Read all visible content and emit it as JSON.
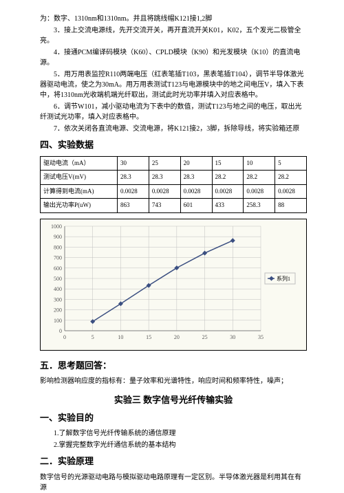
{
  "intro_lines": [
    "为：数字、1310nm和1310nm。并且将跳线帽K121接1,2脚",
    "3．接上交流电源线，先开交流开关，再开直流开关K01，K02，五个发光二极管全亮。",
    "4．接通PCM编译码模块（K60）、CPLD模块（K90）和光发模块（K10）的直流电源。",
    "5．用万用表监控R110两端电压（红表笔插T103，黑表笔插T104），调节半导体激光器驱动电流，使之为30mA。用万用表测试T123与电源模块中的地之间电压V，填入下表中，将1310nm光收端机端光纤取出，测试此时光功率并填入对应表格中。",
    "6．调节W101，减小驱动电流为下表中的数值，测试T123与地之间的电压，取出光纤测试光功率，填入对应表格中。",
    "7．依次关闭各直流电源、交流电源，将K121接2，3脚，拆除导线，将实验箱还原"
  ],
  "section4_title": "四、实验数据",
  "table": {
    "rows": [
      [
        "驱动电流（mA）",
        "30",
        "25",
        "20",
        "15",
        "10",
        "5"
      ],
      [
        "测试电压V(mV)",
        "28.3",
        "28.3",
        "28.3",
        "28.2",
        "28.2",
        "28.2"
      ],
      [
        "计算得到电流(mA)",
        "0.0028",
        "0.0028",
        "0.0028",
        "0.0028",
        "0.0028",
        "0.0028"
      ],
      [
        "输出光功率P(uW)",
        "863",
        "743",
        "601",
        "433",
        "258.3",
        "88"
      ]
    ]
  },
  "chart": {
    "type": "line",
    "x_values": [
      5,
      10,
      15,
      20,
      25,
      30
    ],
    "y_values": [
      88,
      258.3,
      433,
      601,
      743,
      863
    ],
    "x_min": 0,
    "x_max": 35,
    "x_step": 5,
    "y_min": 0,
    "y_max": 1000,
    "y_step": 100,
    "plot_bg": "#fafaf2",
    "grid_color": "#bfbfbf",
    "line_color": "#3b4f81",
    "marker_color": "#3b4f81",
    "legend_label": "系列1",
    "axis_color": "#808080",
    "tick_fontsize": 8
  },
  "section5_title": "五．思考题回答：",
  "section5_text": "影响检测器响应度的指标有：量子效率和光谱特性，响应时间和频率特性，噪声；",
  "exp3_title": "实验三 数字信号光纤传输实验",
  "purpose_title": "一、实验目的",
  "purpose_items": [
    "1.了解数字信号光纤传输系统的通信原理",
    "2.掌握完整数字光纤通信系统的基本结构"
  ],
  "principle_title": "二．实验原理",
  "principle_text": "数字信号的光源驱动电路与模拟驱动电路原理有一定区别。半导体激光器是利用其在有源"
}
